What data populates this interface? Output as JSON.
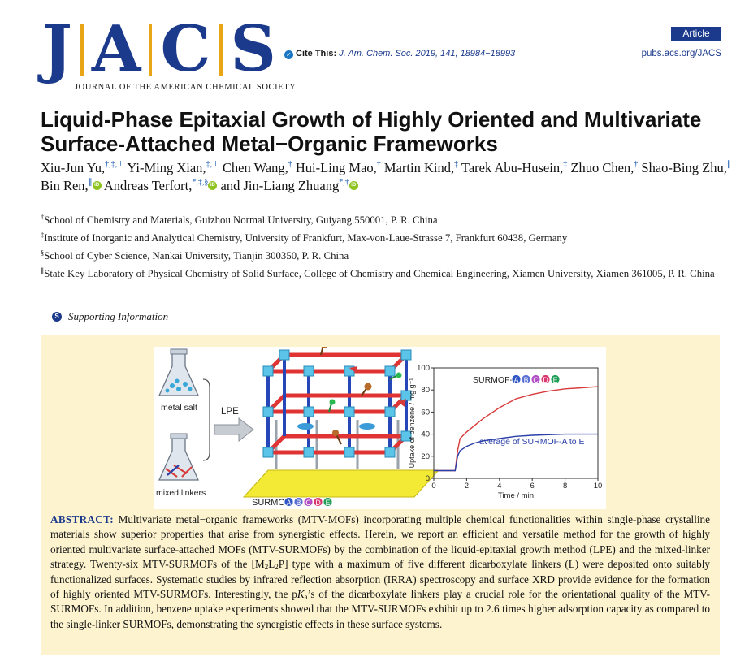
{
  "journal": {
    "logo_letters": [
      "J",
      "A",
      "C",
      "S"
    ],
    "full_name": "JOURNAL OF THE AMERICAN CHEMICAL SOCIETY",
    "article_type": "Article",
    "cite_label": "Cite This:",
    "cite_ref": "J. Am. Chem. Soc. 2019, 141, 18984−18993",
    "url": "pubs.acs.org/JACS"
  },
  "title": "Liquid-Phase Epitaxial Growth of Highly Oriented and Multivariate Surface-Attached Metal−Organic Frameworks",
  "authors": [
    {
      "name": "Xiu-Jun Yu,",
      "sup": "†,‡,⊥",
      "orcid": false
    },
    {
      "name": "Yi-Ming Xian,",
      "sup": "‡,⊥",
      "orcid": false
    },
    {
      "name": "Chen Wang,",
      "sup": "†",
      "orcid": false
    },
    {
      "name": "Hui-Ling Mao,",
      "sup": "†",
      "orcid": false
    },
    {
      "name": "Martin Kind,",
      "sup": "‡",
      "orcid": false
    },
    {
      "name": "Tarek Abu-Husein,",
      "sup": "‡",
      "orcid": false
    },
    {
      "name": "Zhuo Chen,",
      "sup": "†",
      "orcid": false
    },
    {
      "name": "Shao-Bing Zhu,",
      "sup": "∥",
      "orcid": false
    },
    {
      "name": "Bin Ren,",
      "sup": "∥",
      "orcid": true
    },
    {
      "name": "Andreas Terfort,",
      "sup": "*,‡,§",
      "orcid": true
    },
    {
      "name": "and Jin-Liang Zhuang",
      "sup": "*,†",
      "orcid": true
    }
  ],
  "orcid_label": "iD",
  "affiliations": [
    {
      "mark": "†",
      "text": "School of Chemistry and Materials, Guizhou Normal University, Guiyang 550001, P. R. China"
    },
    {
      "mark": "‡",
      "text": "Institute of Inorganic and Analytical Chemistry, University of Frankfurt, Max-von-Laue-Strasse 7, Frankfurt 60438, Germany"
    },
    {
      "mark": "§",
      "text": "School of Cyber Science, Nankai University, Tianjin 300350, P. R. China"
    },
    {
      "mark": "∥",
      "text": "State Key Laboratory of Physical Chemistry of Solid Surface, College of Chemistry and Chemical Engineering, Xiamen University, Xiamen 361005, P. R. China"
    }
  ],
  "supporting_icon": "S",
  "supporting_label": "Supporting Information",
  "toc": {
    "flask_top_label": "metal salt",
    "flask_bottom_label": "mixed linkers",
    "arrow_label": "LPE",
    "surmof_prefix": "SURMOF-",
    "linker_letters": [
      "A",
      "B",
      "C",
      "D",
      "E"
    ],
    "linker_colors": [
      "#2f56c4",
      "#5a6fd2",
      "#b14fc4",
      "#d8386d",
      "#1f9e58"
    ]
  },
  "chart_data": {
    "type": "line",
    "xlabel": "Time / min",
    "ylabel": "Uptake of benzene / mg g⁻¹",
    "xlim": [
      0,
      10
    ],
    "ylim": [
      0,
      100
    ],
    "xticks": [
      0,
      2,
      4,
      6,
      8,
      10
    ],
    "yticks": [
      0,
      20,
      40,
      60,
      80,
      100
    ],
    "series": [
      {
        "name": "SURMOF-ABCDE",
        "color": "#d83a3a",
        "x": [
          0,
          1.3,
          1.45,
          1.6,
          2,
          2.5,
          3,
          4,
          5,
          6,
          7,
          8,
          9,
          10
        ],
        "y": [
          7,
          7,
          25,
          36,
          42,
          48,
          54,
          64,
          72,
          76,
          79,
          81,
          82,
          83
        ]
      },
      {
        "name": "average of SURMOF-A to E",
        "color": "#2a3fa8",
        "x": [
          0,
          1.3,
          1.45,
          1.6,
          2,
          2.5,
          3,
          4,
          5,
          6,
          7,
          8,
          9,
          10
        ],
        "y": [
          7,
          7,
          20,
          25,
          29,
          32,
          34,
          36,
          38,
          39,
          39.5,
          40,
          40,
          40
        ]
      }
    ]
  },
  "abstract": {
    "lead": "ABSTRACT:",
    "part1": " Multivariate metal−organic frameworks (MTV-MOFs) incorporating multiple chemical functionalities within single-phase crystalline materials show superior properties that arise from synergistic effects. Herein, we report an efficient and versatile method for the growth of highly oriented multivariate surface-attached MOFs (MTV-SURMOFs) by the combination of the liquid-epitaxial growth method (LPE) and the mixed-linker strategy. Twenty-six MTV-SURMOFs of the [M",
    "sub_2a": "2",
    "mid1": "L",
    "sub_2b": "2",
    "part2": "P] type with a maximum of five different dicarboxylate linkers (L) were deposited onto suitably functionalized surfaces. Systematic studies by infrared reflection absorption (IRRA) spectroscopy and surface XRD provide evidence for the formation of highly oriented MTV-SURMOFs. Interestingly, the p",
    "k": "K",
    "sub_a": "a",
    "part3": "’s of the dicarboxylate linkers play a crucial role for the orientational quality of the MTV-SURMOFs. In addition, benzene uptake experiments showed that the MTV-SURMOFs exhibit up to 2.6 times higher adsorption capacity as compared to the single-linker SURMOFs, demonstrating the synergistic effects in these surface systems."
  }
}
